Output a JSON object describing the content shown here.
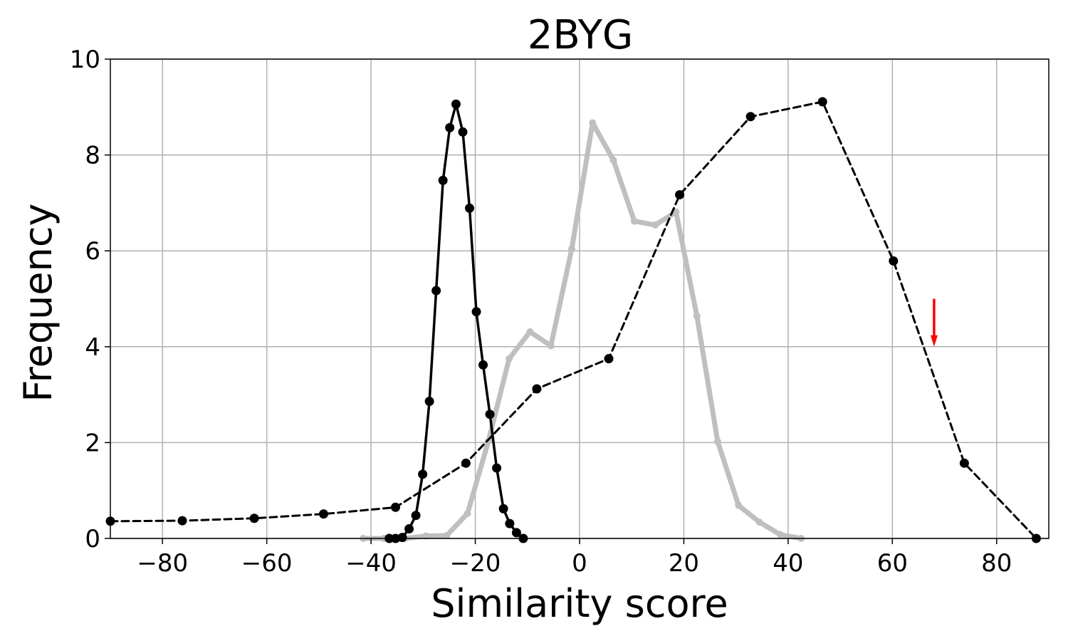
{
  "chart_data": {
    "type": "line",
    "title": "2BYG",
    "xlabel": "Similarity score",
    "ylabel": "Frequency",
    "xlim": [
      -90,
      90
    ],
    "ylim": [
      0,
      10
    ],
    "xticks": [
      -80,
      -60,
      -40,
      -20,
      0,
      20,
      40,
      60,
      80
    ],
    "xtick_labels": [
      "−80",
      "−60",
      "−40",
      "−20",
      "0",
      "20",
      "40",
      "60",
      "80"
    ],
    "yticks": [
      0,
      2,
      4,
      6,
      8,
      10
    ],
    "ytick_labels": [
      "0",
      "2",
      "4",
      "6",
      "8",
      "10"
    ],
    "grid": true,
    "series": [
      {
        "style": "solid-black-markers",
        "color": "#000000",
        "x": [
          -36.5,
          -35.3,
          -34.0,
          -32.7,
          -31.4,
          -30.1,
          -28.8,
          -27.5,
          -26.2,
          -24.9,
          -23.7,
          -22.4,
          -21.1,
          -19.8,
          -18.5,
          -17.2,
          -15.9,
          -14.6,
          -13.4,
          -12.1,
          -10.8
        ],
        "y": [
          0.0,
          0.0,
          0.02,
          0.2,
          0.48,
          1.34,
          2.86,
          5.17,
          7.47,
          8.57,
          9.06,
          8.48,
          6.89,
          4.73,
          3.62,
          2.59,
          1.47,
          0.62,
          0.31,
          0.12,
          0.0
        ]
      },
      {
        "style": "thick-grey",
        "color": "#bfbfbf",
        "x": [
          -41.5,
          -37.5,
          -33.5,
          -29.5,
          -25.5,
          -21.5,
          -17.5,
          -13.5,
          -9.5,
          -5.5,
          -1.5,
          2.5,
          6.5,
          10.5,
          14.5,
          18.5,
          22.5,
          26.5,
          30.5,
          34.5,
          38.5,
          42.5
        ],
        "y": [
          0.0,
          0.0,
          0.0,
          0.05,
          0.06,
          0.52,
          2.03,
          3.75,
          4.31,
          4.02,
          6.04,
          8.67,
          7.89,
          6.62,
          6.54,
          6.81,
          4.64,
          2.02,
          0.69,
          0.34,
          0.08,
          0.0
        ]
      },
      {
        "style": "dashed-black-markers",
        "color": "#000000",
        "x": [
          -90.0,
          -76.2,
          -62.4,
          -49.1,
          -35.3,
          -21.8,
          -8.2,
          5.6,
          19.2,
          32.8,
          46.6,
          60.2,
          73.8,
          87.6
        ],
        "y": [
          0.36,
          0.37,
          0.42,
          0.51,
          0.65,
          1.57,
          3.12,
          3.75,
          7.17,
          8.8,
          9.11,
          5.79,
          1.57,
          0.0
        ]
      }
    ],
    "annotations": [
      {
        "type": "arrow",
        "color": "#ff0000",
        "x": 68.0,
        "y_from": 5.0,
        "y_to": 4.0
      }
    ]
  }
}
